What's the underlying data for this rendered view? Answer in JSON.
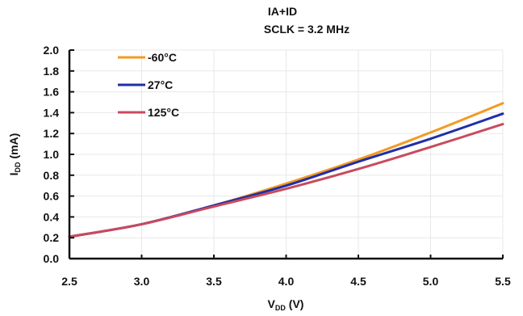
{
  "chart_data": {
    "type": "line",
    "title_line1": "IA+ID",
    "title_line2": "SCLK = 3.2 MHz",
    "xlabel": {
      "main": "V",
      "sub": "DD",
      "unit": " (V)"
    },
    "ylabel": {
      "main": "I",
      "sub": "DD",
      "unit": " (mA)"
    },
    "xlim": [
      2.5,
      5.5
    ],
    "ylim": [
      0.0,
      2.0
    ],
    "x_ticks": [
      "2.5",
      "3.0",
      "3.5",
      "4.0",
      "4.5",
      "5.0",
      "5.5"
    ],
    "y_ticks": [
      "0.0",
      "0.2",
      "0.4",
      "0.6",
      "0.8",
      "1.0",
      "1.2",
      "1.4",
      "1.6",
      "1.8",
      "2.0"
    ],
    "grid": true,
    "legend_position": "top-left",
    "series": [
      {
        "name": "-60°C",
        "color": "#f39a24",
        "x": [
          2.5,
          3.0,
          3.5,
          4.0,
          4.5,
          5.0,
          5.5
        ],
        "y": [
          0.21,
          0.33,
          0.51,
          0.72,
          0.95,
          1.21,
          1.49
        ]
      },
      {
        "name": "27°C",
        "color": "#1f2fa8",
        "x": [
          2.5,
          3.0,
          3.5,
          4.0,
          4.5,
          5.0,
          5.5
        ],
        "y": [
          0.21,
          0.33,
          0.51,
          0.7,
          0.93,
          1.15,
          1.39
        ]
      },
      {
        "name": "125°C",
        "color": "#c84a5e",
        "x": [
          2.5,
          3.0,
          3.5,
          4.0,
          4.5,
          5.0,
          5.5
        ],
        "y": [
          0.21,
          0.33,
          0.5,
          0.67,
          0.86,
          1.07,
          1.29
        ]
      }
    ]
  }
}
